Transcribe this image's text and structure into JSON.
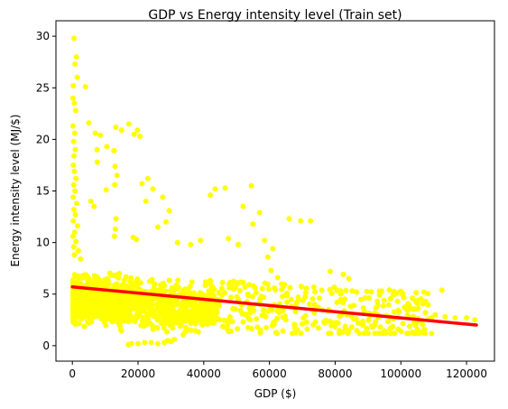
{
  "chart_data": {
    "type": "scatter",
    "title": "GDP vs Energy intensity level (Train set)",
    "xlabel": "GDP ($)",
    "ylabel": "Energy intensity level (MJ/$)",
    "xlim": [
      -5000,
      128500
    ],
    "ylim": [
      -1.5,
      31.5
    ],
    "xticks": [
      0,
      20000,
      40000,
      60000,
      80000,
      100000,
      120000
    ],
    "xtick_labels": [
      "0",
      "20000",
      "40000",
      "60000",
      "80000",
      "100000",
      "120000"
    ],
    "yticks": [
      0,
      5,
      10,
      15,
      20,
      25,
      30
    ],
    "ytick_labels": [
      "0",
      "5",
      "10",
      "15",
      "20",
      "25",
      "30"
    ],
    "grid": false,
    "legend": "none",
    "series": [
      {
        "type": "scatter",
        "color": "#ffff00",
        "points": [
          [
            500,
            29.8
          ],
          [
            1200,
            28
          ],
          [
            800,
            27.3
          ],
          [
            1500,
            26
          ],
          [
            300,
            25.2
          ],
          [
            4000,
            25.1
          ],
          [
            200,
            24
          ],
          [
            600,
            23.5
          ],
          [
            1000,
            22.8
          ],
          [
            200,
            21.3
          ],
          [
            700,
            20.6
          ],
          [
            400,
            19.8
          ],
          [
            900,
            19.0
          ],
          [
            500,
            18.4
          ],
          [
            300,
            17.5
          ],
          [
            600,
            16.9
          ],
          [
            1100,
            16.2
          ],
          [
            400,
            15.6
          ],
          [
            800,
            15.0
          ],
          [
            250,
            14.4
          ],
          [
            1300,
            13.8
          ],
          [
            500,
            13.2
          ],
          [
            900,
            12.7
          ],
          [
            300,
            12.1
          ],
          [
            1600,
            11.6
          ],
          [
            700,
            11.0
          ],
          [
            200,
            10.6
          ],
          [
            1100,
            10.1
          ],
          [
            400,
            9.6
          ],
          [
            1800,
            9.2
          ],
          [
            600,
            8.8
          ],
          [
            2500,
            8.4
          ],
          [
            5000,
            21.6
          ],
          [
            7000,
            20.6
          ],
          [
            8500,
            20.4
          ],
          [
            7500,
            19.0
          ],
          [
            10500,
            19.3
          ],
          [
            13200,
            21.2
          ],
          [
            15000,
            20.9
          ],
          [
            17200,
            21.5
          ],
          [
            18800,
            20.5
          ],
          [
            19800,
            20.9
          ],
          [
            20600,
            20.3
          ],
          [
            12700,
            18.9
          ],
          [
            7600,
            17.8
          ],
          [
            13000,
            17.4
          ],
          [
            13600,
            16.5
          ],
          [
            12900,
            15.6
          ],
          [
            10300,
            15.1
          ],
          [
            5600,
            14.0
          ],
          [
            6600,
            13.5
          ],
          [
            13300,
            12.3
          ],
          [
            13100,
            11.3
          ],
          [
            12800,
            10.6
          ],
          [
            18500,
            10.5
          ],
          [
            19500,
            10.3
          ],
          [
            21200,
            15.7
          ],
          [
            23000,
            16.2
          ],
          [
            24500,
            15.2
          ],
          [
            22400,
            14.0
          ],
          [
            27500,
            14.4
          ],
          [
            29500,
            13.1
          ],
          [
            28500,
            12.0
          ],
          [
            26000,
            11.5
          ],
          [
            42000,
            14.6
          ],
          [
            43500,
            15.2
          ],
          [
            46500,
            15.3
          ],
          [
            54500,
            15.5
          ],
          [
            52000,
            13.5
          ],
          [
            57000,
            12.9
          ],
          [
            55000,
            11.8
          ],
          [
            61000,
            9.4
          ],
          [
            66000,
            12.3
          ],
          [
            69500,
            12.1
          ],
          [
            72500,
            12.1
          ],
          [
            39000,
            10.2
          ],
          [
            36000,
            9.8
          ],
          [
            32000,
            10.0
          ],
          [
            47500,
            10.4
          ],
          [
            50500,
            9.8
          ],
          [
            58500,
            10.2
          ],
          [
            59500,
            8.6
          ],
          [
            60500,
            7.3
          ],
          [
            62500,
            6.6
          ],
          [
            78500,
            7.2
          ],
          [
            82500,
            6.9
          ],
          [
            84200,
            6.5
          ],
          [
            85200,
            5.3
          ],
          [
            86500,
            5.2
          ],
          [
            96500,
            5.4
          ],
          [
            99000,
            4.3
          ],
          [
            101500,
            3.8
          ],
          [
            103500,
            4.6
          ],
          [
            105000,
            4.1
          ],
          [
            107000,
            5.2
          ],
          [
            112500,
            5.4
          ],
          [
            108500,
            2.6
          ],
          [
            110500,
            3.0
          ],
          [
            113500,
            2.8
          ],
          [
            116500,
            2.7
          ],
          [
            120000,
            2.7
          ],
          [
            122500,
            2.5
          ],
          [
            83500,
            3.0
          ],
          [
            87000,
            2.2
          ],
          [
            92000,
            2.0
          ],
          [
            78000,
            3.5
          ],
          [
            74000,
            2.3
          ],
          [
            70000,
            2.1
          ],
          [
            68000,
            3.8
          ],
          [
            65000,
            2.5
          ],
          [
            63000,
            3.2
          ],
          [
            56000,
            2.6
          ],
          [
            52000,
            2.3
          ],
          [
            48000,
            2.8
          ],
          [
            44000,
            3.2
          ],
          [
            40000,
            2.6
          ],
          [
            36000,
            2.7
          ],
          [
            32000,
            2.3
          ],
          [
            30000,
            0.4
          ],
          [
            28000,
            0.3
          ],
          [
            26000,
            0.2
          ],
          [
            24000,
            0.3
          ],
          [
            22000,
            0.3
          ],
          [
            20000,
            0.2
          ],
          [
            18000,
            0.2
          ],
          [
            17000,
            0.1
          ],
          [
            31000,
            0.6
          ],
          [
            29000,
            0.5
          ]
        ],
        "cluster": {
          "comment_free": true,
          "count": 1400,
          "x_range": [
            200,
            45000
          ],
          "y_range": [
            1.0,
            9.0
          ],
          "x_power": 1.8,
          "y_center": 4.5
        }
      }
    ],
    "fit_line": {
      "color": "#ff0000",
      "x": [
        0,
        123000
      ],
      "y": [
        5.7,
        2.0
      ]
    }
  }
}
